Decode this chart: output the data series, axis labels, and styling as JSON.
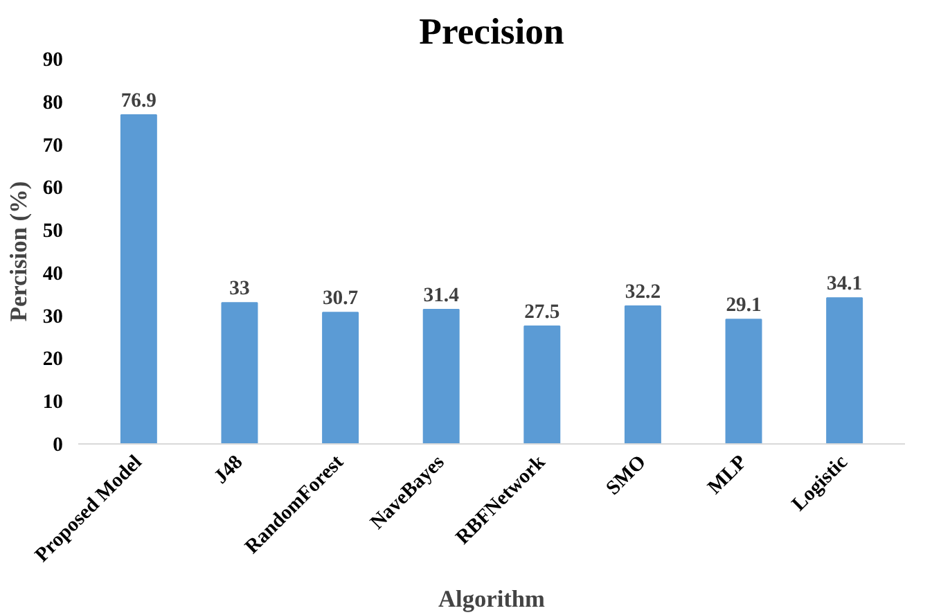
{
  "chart_data": {
    "type": "bar",
    "title": "Precision",
    "xlabel": "Algorithm",
    "ylabel": "Percision (%)",
    "categories": [
      "Proposed Model",
      "J48",
      "RandomForest",
      "NaveBayes",
      "RBFNetwork",
      "SMO",
      "MLP",
      "Logistic"
    ],
    "values": [
      76.9,
      33,
      30.7,
      31.4,
      27.5,
      32.2,
      29.1,
      34.1
    ],
    "color": "#5b9bd5",
    "ylim": [
      0,
      90
    ],
    "yticks": [
      0,
      10,
      20,
      30,
      40,
      50,
      60,
      70,
      80,
      90
    ],
    "data_labels": true,
    "grid": false
  }
}
